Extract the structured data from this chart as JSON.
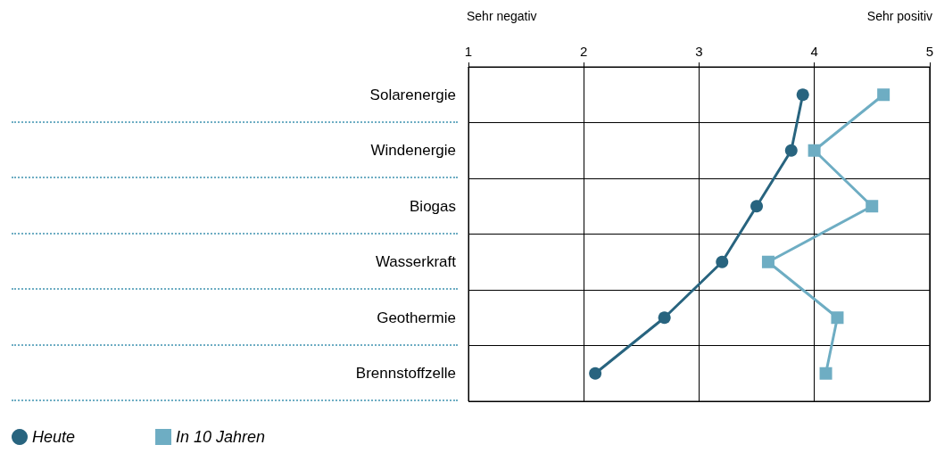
{
  "chart_data": {
    "type": "line",
    "orientation": "horizontal",
    "categories": [
      "Solarenergie",
      "Windenergie",
      "Biogas",
      "Wasserkraft",
      "Geothermie",
      "Brennstoffzelle"
    ],
    "series": [
      {
        "name": "Heute",
        "color": "#28647f",
        "marker": "circle",
        "values": [
          3.9,
          3.8,
          3.5,
          3.2,
          2.7,
          2.1
        ]
      },
      {
        "name": "In 10 Jahren",
        "color": "#6eadc3",
        "marker": "square",
        "values": [
          4.6,
          4.0,
          4.5,
          3.6,
          4.2,
          4.1
        ]
      }
    ],
    "xlim": [
      1,
      5
    ],
    "xticks": [
      1,
      2,
      3,
      4,
      5
    ],
    "grid": true,
    "legend": "bottom left",
    "line_style": "solid",
    "annotations": [
      "Sehr negativ",
      "Sehr positiv"
    ]
  }
}
